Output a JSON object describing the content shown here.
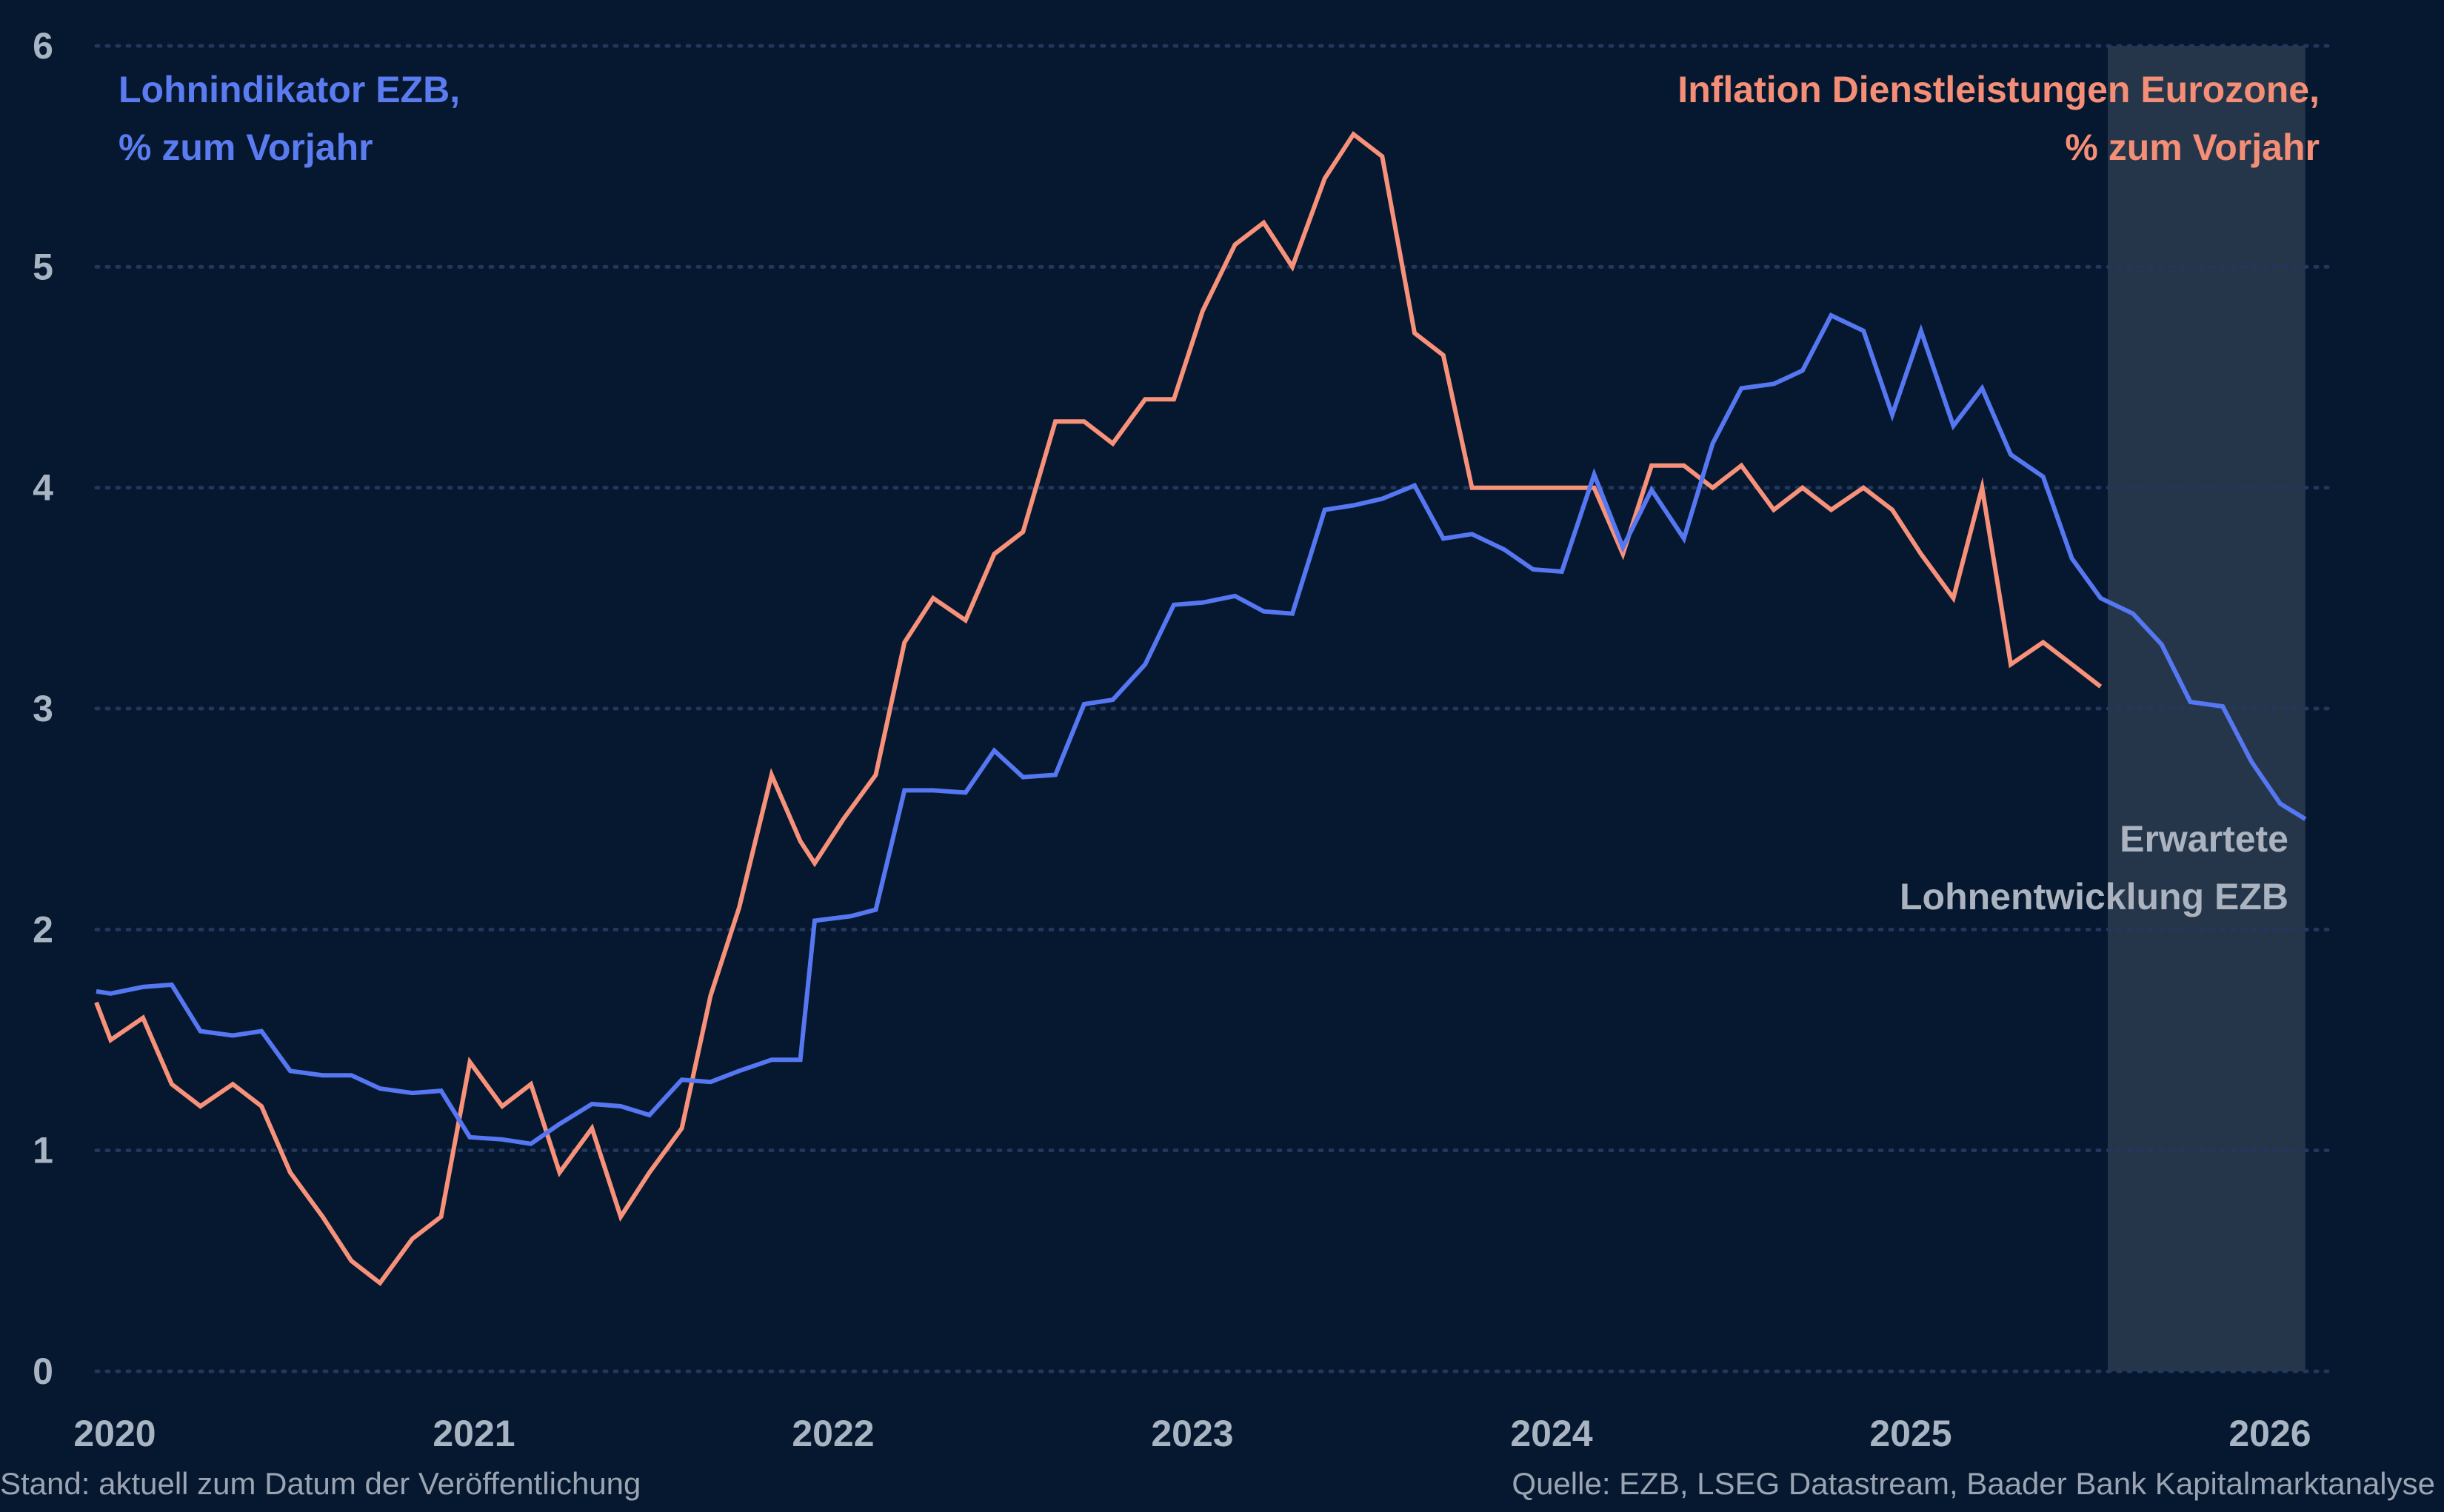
{
  "colors": {
    "background": "#06182f",
    "wage_line": "#5677f2",
    "inflation_line": "#f8917a",
    "forecast_shade": "#2a3a4e",
    "grid": "#23365c",
    "tick_text": "#a9b4c3"
  },
  "annotations": {
    "wage_label_line1": "Lohnindikator EZB,",
    "wage_label_line2": "% zum Vorjahr",
    "inflation_label_line1": "Inflation Dienstleistungen Eurozone,",
    "inflation_label_line2": "% zum Vorjahr",
    "forecast_label_line1": "Erwartete",
    "forecast_label_line2": "Lohnentwicklung EZB"
  },
  "footer": {
    "left": "Stand: aktuell zum Datum der Veröffentlichung",
    "right": "Quelle: EZB, LSEG Datastream, Baader Bank Kapitalmarktanalyse"
  },
  "chart_data": {
    "type": "line",
    "xlim": [
      2020.0,
      2026.2
    ],
    "ylim": [
      0,
      6
    ],
    "y_ticks": [
      "0",
      "1",
      "2",
      "3",
      "4",
      "5",
      "6"
    ],
    "x_ticks": [
      "2020",
      "2021",
      "2022",
      "2023",
      "2024",
      "2025",
      "2026"
    ],
    "grid": "horizontal dotted",
    "forecast_region": [
      2025.6,
      2026.15
    ],
    "series": [
      {
        "name": "Lohnindikator EZB, % zum Vorjahr",
        "x": [
          2020.0,
          2020.04,
          2020.13,
          2020.21,
          2020.29,
          2020.38,
          2020.46,
          2020.54,
          2020.63,
          2020.71,
          2020.79,
          2020.88,
          2020.96,
          2021.04,
          2021.13,
          2021.21,
          2021.29,
          2021.38,
          2021.46,
          2021.54,
          2021.63,
          2021.71,
          2021.79,
          2021.88,
          2021.96,
          2022.0,
          2022.1,
          2022.17,
          2022.25,
          2022.33,
          2022.42,
          2022.5,
          2022.58,
          2022.67,
          2022.75,
          2022.83,
          2022.92,
          2023.0,
          2023.08,
          2023.17,
          2023.25,
          2023.33,
          2023.42,
          2023.5,
          2023.58,
          2023.67,
          2023.75,
          2023.83,
          2023.92,
          2024.0,
          2024.08,
          2024.17,
          2024.25,
          2024.33,
          2024.42,
          2024.5,
          2024.58,
          2024.67,
          2024.75,
          2024.83,
          2024.92,
          2025.0,
          2025.08,
          2025.17,
          2025.25,
          2025.33,
          2025.42,
          2025.5,
          2025.58,
          2025.67,
          2025.75,
          2025.83,
          2025.92,
          2026.0,
          2026.08,
          2026.15
        ],
        "y": [
          1.72,
          1.71,
          1.74,
          1.75,
          1.54,
          1.52,
          1.54,
          1.36,
          1.34,
          1.34,
          1.28,
          1.26,
          1.27,
          1.06,
          1.05,
          1.03,
          1.12,
          1.21,
          1.2,
          1.16,
          1.32,
          1.31,
          1.36,
          1.41,
          1.41,
          2.04,
          2.06,
          2.09,
          2.63,
          2.63,
          2.62,
          2.81,
          2.69,
          2.7,
          3.02,
          3.04,
          3.2,
          3.47,
          3.48,
          3.51,
          3.44,
          3.43,
          3.9,
          3.92,
          3.95,
          4.01,
          3.77,
          3.79,
          3.72,
          3.63,
          3.62,
          4.06,
          3.73,
          3.99,
          3.77,
          4.2,
          4.45,
          4.47,
          4.53,
          4.78,
          4.71,
          4.33,
          4.71,
          4.28,
          4.45,
          4.15,
          4.05,
          3.68,
          3.5,
          3.43,
          3.29,
          3.03,
          3.01,
          2.76,
          2.57,
          2.5
        ]
      },
      {
        "name": "Inflation Dienstleistungen Eurozone, % zum Vorjahr",
        "x": [
          2020.0,
          2020.04,
          2020.13,
          2020.21,
          2020.29,
          2020.38,
          2020.46,
          2020.54,
          2020.63,
          2020.71,
          2020.79,
          2020.88,
          2020.96,
          2021.04,
          2021.13,
          2021.21,
          2021.29,
          2021.38,
          2021.46,
          2021.54,
          2021.63,
          2021.71,
          2021.79,
          2021.88,
          2021.96,
          2022.0,
          2022.08,
          2022.17,
          2022.25,
          2022.33,
          2022.42,
          2022.5,
          2022.58,
          2022.67,
          2022.75,
          2022.83,
          2022.92,
          2023.0,
          2023.08,
          2023.17,
          2023.25,
          2023.33,
          2023.42,
          2023.5,
          2023.58,
          2023.67,
          2023.75,
          2023.83,
          2023.92,
          2024.0,
          2024.08,
          2024.17,
          2024.25,
          2024.33,
          2024.42,
          2024.5,
          2024.58,
          2024.67,
          2024.75,
          2024.83,
          2024.92,
          2025.0,
          2025.08,
          2025.17,
          2025.25,
          2025.33,
          2025.42,
          2025.5,
          2025.58
        ],
        "y": [
          1.67,
          1.5,
          1.6,
          1.3,
          1.2,
          1.3,
          1.2,
          0.9,
          0.7,
          0.5,
          0.4,
          0.6,
          0.7,
          1.4,
          1.2,
          1.3,
          0.9,
          1.1,
          0.7,
          0.9,
          1.1,
          1.7,
          2.1,
          2.7,
          2.4,
          2.3,
          2.5,
          2.7,
          3.3,
          3.5,
          3.4,
          3.7,
          3.8,
          4.3,
          4.3,
          4.2,
          4.4,
          4.4,
          4.8,
          5.1,
          5.2,
          5.0,
          5.4,
          5.6,
          5.5,
          4.7,
          4.6,
          4.0,
          4.0,
          4.0,
          4.0,
          4.0,
          3.7,
          4.1,
          4.1,
          4.0,
          4.1,
          3.9,
          4.0,
          3.9,
          4.0,
          3.9,
          3.7,
          3.5,
          4.0,
          3.2,
          3.3,
          3.2,
          3.1
        ]
      }
    ]
  }
}
